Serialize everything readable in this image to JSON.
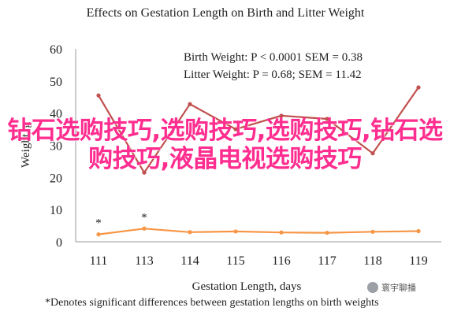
{
  "chart_data": {
    "type": "line",
    "title": "Effects on Gestation Length on Birth and Litter Weight",
    "xlabel": "Gestation Length, days",
    "ylabel": "Weight, g",
    "categories": [
      "111",
      "113",
      "114",
      "115",
      "116",
      "117",
      "118",
      "119"
    ],
    "ylim": [
      0,
      60
    ],
    "yticks": [
      0,
      10,
      20,
      30,
      40,
      50,
      60
    ],
    "grid": false,
    "series": [
      {
        "name": "Litter Weight",
        "color": "#c0504d",
        "values": [
          45.5,
          21.5,
          42.8,
          35.0,
          39.2,
          38.2,
          27.5,
          48.0
        ]
      },
      {
        "name": "Birth Weight",
        "color": "#f79646",
        "values": [
          2.3,
          4.1,
          3.0,
          3.2,
          2.9,
          2.8,
          3.1,
          3.3
        ]
      }
    ],
    "annotations": [
      {
        "text": "Birth Weight: P < 0.0001 SEM = 0.38"
      },
      {
        "text": "Litter Weight: P = 0.68; SEM = 11.42"
      }
    ],
    "marks": [
      {
        "text": "*",
        "category_index": 0
      },
      {
        "text": "*",
        "category_index": 1
      }
    ],
    "footnote": "*Denotes significant differences between gestation lengths on birth weights"
  },
  "overlay_text": "钻石选购技巧,选购技巧,选购技巧,钻石选购技巧,液晶电视选购技巧",
  "watermark": {
    "text": "寰宇聊播",
    "icon": "chat-icon"
  }
}
